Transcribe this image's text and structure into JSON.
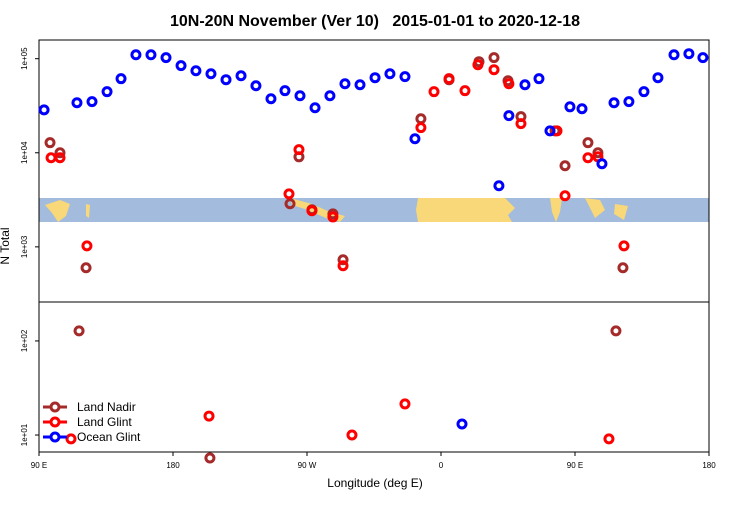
{
  "chart_data": {
    "type": "scatter",
    "title": "10N-20N November (Ver 10)   2015-01-01 to 2020-12-18",
    "xlabel": "Longitude (deg E)",
    "ylabel": "N Total",
    "ylog": true,
    "xlim": [
      90,
      540
    ],
    "ylim": [
      6.6,
      158000
    ],
    "xticks": [
      {
        "value": 90,
        "label": "90 E"
      },
      180,
      {
        "value": 270,
        "label": "90 W"
      },
      {
        "value": 360,
        "label": "0"
      },
      {
        "value": 450,
        "label": "90 E"
      },
      {
        "value": 540,
        "label": "180"
      }
    ],
    "yticks": [
      {
        "value": 10,
        "label": "1e+01"
      },
      {
        "value": 100,
        "label": "1e+02"
      },
      {
        "value": 1000,
        "label": "1e+03"
      },
      {
        "value": 10000,
        "label": "1e+04"
      },
      {
        "value": 100000,
        "label": "1e+05"
      }
    ],
    "legend": "bottom-left",
    "series": [
      {
        "name": "Land Nadir",
        "color": "#a52a2a",
        "x": [
          97.4,
          104.1,
          121.6,
          116.9,
          204.8,
          258.6,
          264.6,
          273.3,
          287.4,
          294.2,
          346.5,
          365.4,
          385.5,
          395.6,
          405.0,
          413.7,
          436.6,
          443.3,
          458.7,
          465.4,
          477.5,
          482.2
        ],
        "values": [
          12800,
          10000,
          600,
          128,
          5.7,
          2870,
          9060,
          2480,
          2240,
          730,
          23000,
          59800,
          92900,
          102600,
          58300,
          24200,
          17100,
          7280,
          12800,
          10000,
          128,
          600
        ]
      },
      {
        "name": "Land Glint",
        "color": "#ff0000",
        "x": [
          98.1,
          104.1,
          122.2,
          111.5,
          204.2,
          257.9,
          264.6,
          273.3,
          287.4,
          294.2,
          300.2,
          335.8,
          346.5,
          355.3,
          365.4,
          376.1,
          384.8,
          395.6,
          405.6,
          413.7,
          437.9,
          443.3,
          458.7,
          465.4,
          472.8,
          482.9
        ],
        "values": [
          8850,
          8850,
          1025,
          9.1,
          15.9,
          3660,
          10800,
          2420,
          2080,
          630,
          10,
          21.4,
          18500,
          44600,
          61300,
          45700,
          86300,
          76400,
          54200,
          20400,
          17100,
          3490,
          8850,
          9060,
          9.1,
          1025
        ]
      },
      {
        "name": "Ocean Glint",
        "color": "#0000ff",
        "x": [
          93.4,
          115.5,
          125.6,
          135.7,
          145.1,
          155.1,
          165.2,
          175.3,
          185.4,
          195.4,
          205.5,
          215.6,
          225.7,
          235.7,
          245.8,
          255.2,
          265.3,
          275.4,
          285.4,
          295.5,
          305.6,
          315.7,
          325.7,
          335.8,
          342.5,
          398.9,
          405.6,
          416.4,
          425.8,
          433.2,
          446.6,
          454.7,
          468.1,
          476.2,
          486.2,
          496.3,
          505.7,
          516.5,
          526.5,
          535.9,
          374.1
        ],
        "values": [
          28600,
          34000,
          35000,
          44600,
          61300,
          110000,
          110000,
          102600,
          84300,
          74500,
          69200,
          59800,
          65900,
          51600,
          37500,
          45700,
          40400,
          30100,
          40400,
          54200,
          52900,
          62800,
          69200,
          64400,
          14100,
          4460,
          24800,
          52900,
          61300,
          17100,
          30800,
          29400,
          7640,
          34000,
          35000,
          44600,
          62800,
          110000,
          113000,
          102600,
          13.1
        ]
      }
    ]
  }
}
